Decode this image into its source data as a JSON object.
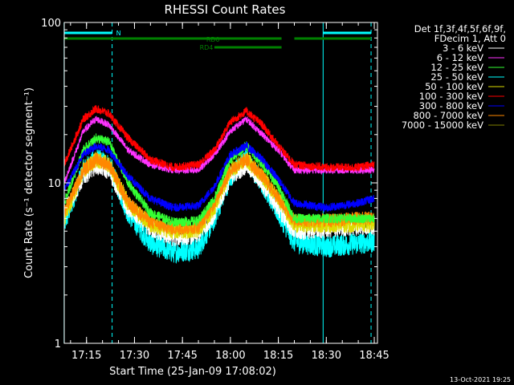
{
  "chart_data": {
    "type": "line",
    "title": "RHESSI Count Rates",
    "xlabel": "Start Time (25-Jan-09 17:08:02)",
    "ylabel": "Count Rate (s⁻¹ detector segment⁻¹)",
    "y_scale": "log",
    "ylim": [
      1,
      100
    ],
    "y_ticks": [
      "1",
      "10",
      "100"
    ],
    "x_range": [
      "17:08:02",
      "18:46:00"
    ],
    "x_ticks": [
      "17:15",
      "17:30",
      "17:45",
      "18:00",
      "18:15",
      "18:30",
      "18:45"
    ],
    "grid": false,
    "legend_position": "right",
    "legend_header": [
      "Det 1f,3f,4f,5f,6f,9f,",
      "FDecim 1, Att 0"
    ],
    "series": [
      {
        "name": "3 - 6 keV",
        "color": "#ffffff",
        "x": [
          "17:08",
          "17:14",
          "17:18",
          "17:22",
          "17:28",
          "17:35",
          "17:42",
          "17:50",
          "17:55",
          "18:00",
          "18:05",
          "18:10",
          "18:15",
          "18:20",
          "18:30",
          "18:40",
          "18:45"
        ],
        "values": [
          6.5,
          11,
          13,
          12,
          7,
          5.2,
          4.6,
          4.8,
          6.5,
          11,
          13,
          10,
          7,
          5,
          5.2,
          5.4,
          5.4
        ]
      },
      {
        "name": "6 - 12 keV",
        "color": "#ff33ff",
        "x": [
          "17:08",
          "17:14",
          "17:18",
          "17:22",
          "17:28",
          "17:35",
          "17:42",
          "17:50",
          "17:55",
          "18:00",
          "18:05",
          "18:10",
          "18:15",
          "18:20",
          "18:30",
          "18:40",
          "18:45"
        ],
        "values": [
          10,
          21,
          25,
          23,
          16,
          13,
          12,
          12,
          15,
          21,
          25,
          20,
          16,
          12,
          12,
          12,
          12
        ]
      },
      {
        "name": "12 - 25 keV",
        "color": "#33ff33",
        "x": [
          "17:08",
          "17:14",
          "17:18",
          "17:22",
          "17:28",
          "17:35",
          "17:42",
          "17:50",
          "17:55",
          "18:00",
          "18:05",
          "18:10",
          "18:15",
          "18:20",
          "18:30",
          "18:40",
          "18:45"
        ],
        "values": [
          7.5,
          16,
          19,
          18,
          10,
          6.5,
          5.7,
          5.8,
          8,
          14,
          17,
          13,
          9.5,
          6,
          6,
          6,
          6
        ]
      },
      {
        "name": "25 - 50 keV",
        "color": "#00ffff",
        "x": [
          "17:08",
          "17:14",
          "17:18",
          "17:22",
          "17:28",
          "17:35",
          "17:42",
          "17:50",
          "17:55",
          "18:00",
          "18:05",
          "18:10",
          "18:15",
          "18:20",
          "18:30",
          "18:40",
          "18:45"
        ],
        "values": [
          5.5,
          12,
          14,
          13,
          6.5,
          4.2,
          3.7,
          3.9,
          6,
          11,
          14,
          10,
          6.5,
          4.3,
          4,
          4.2,
          4.3
        ]
      },
      {
        "name": "50 - 100 keV",
        "color": "#dddd00",
        "x": [
          "17:08",
          "17:14",
          "17:18",
          "17:22",
          "17:28",
          "17:35",
          "17:42",
          "17:50",
          "17:55",
          "18:00",
          "18:05",
          "18:10",
          "18:15",
          "18:20",
          "18:30",
          "18:40",
          "18:45"
        ],
        "values": [
          6,
          12,
          14,
          13,
          7.5,
          5.5,
          5,
          5.1,
          7,
          12,
          14,
          11,
          8,
          5.5,
          5.5,
          5.5,
          5.5
        ]
      },
      {
        "name": "100 - 300 keV",
        "color": "#ff0000",
        "x": [
          "17:08",
          "17:14",
          "17:18",
          "17:22",
          "17:28",
          "17:35",
          "17:42",
          "17:50",
          "17:55",
          "18:00",
          "18:05",
          "18:10",
          "18:15",
          "18:20",
          "18:30",
          "18:40",
          "18:45"
        ],
        "values": [
          13,
          25,
          29,
          27,
          19,
          14,
          12.5,
          13,
          16,
          24,
          28,
          23,
          17,
          13,
          12.5,
          12.5,
          13
        ]
      },
      {
        "name": "300 - 800 keV",
        "color": "#0000ff",
        "x": [
          "17:08",
          "17:14",
          "17:18",
          "17:22",
          "17:28",
          "17:35",
          "17:42",
          "17:50",
          "17:55",
          "18:00",
          "18:05",
          "18:10",
          "18:15",
          "18:20",
          "18:30",
          "18:40",
          "18:45"
        ],
        "values": [
          9,
          15,
          17,
          16,
          11,
          8,
          7,
          7.2,
          9.5,
          15,
          17,
          14,
          10.5,
          7.5,
          7,
          7.5,
          8
        ]
      },
      {
        "name": "800 - 7000 keV",
        "color": "#ff8800",
        "x": [
          "17:08",
          "17:14",
          "17:18",
          "17:22",
          "17:28",
          "17:35",
          "17:42",
          "17:50",
          "17:55",
          "18:00",
          "18:05",
          "18:10",
          "18:15",
          "18:20",
          "18:30",
          "18:40",
          "18:45"
        ],
        "values": [
          6.5,
          12,
          14,
          13,
          7.5,
          5.7,
          5.2,
          5.3,
          7.5,
          12,
          14,
          11,
          8,
          5.8,
          5.8,
          6,
          6
        ]
      },
      {
        "name": "7000 - 15000 keV",
        "color": "#808000",
        "x": [],
        "values": []
      }
    ],
    "annotations": [
      {
        "label": "N",
        "color": "#00ffff",
        "from": "17:08",
        "to": "17:23"
      },
      {
        "label": "RD0",
        "color": "#008000",
        "from": "17:08",
        "to": "18:16"
      },
      {
        "label": "RD4",
        "color": "#008000",
        "from": "17:55",
        "to": "18:16"
      },
      {
        "label": "",
        "color": "#00ffff",
        "from": "18:29",
        "to": "18:44"
      },
      {
        "label": "",
        "color": "#008000",
        "from": "18:20",
        "to": "18:44"
      }
    ],
    "vertical_markers": [
      {
        "time": "17:08",
        "color": "#00ffff",
        "style": "solid"
      },
      {
        "time": "17:23",
        "color": "#00ffff",
        "style": "dashed"
      },
      {
        "time": "18:29",
        "color": "#00ffff",
        "style": "solid"
      },
      {
        "time": "18:44",
        "color": "#00ffff",
        "style": "dashed"
      }
    ],
    "footer_timestamp": "13-Oct-2021 19:25"
  }
}
